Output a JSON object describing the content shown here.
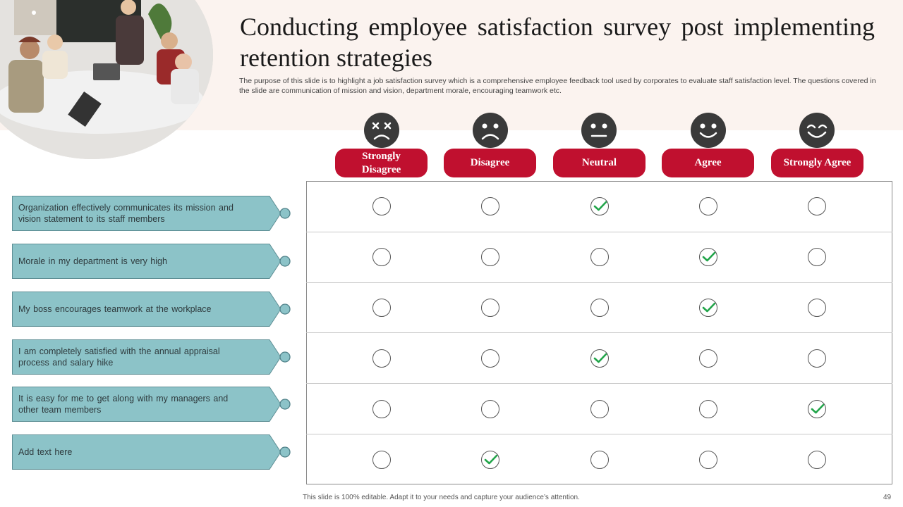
{
  "slide": {
    "title": "Conducting employee satisfaction survey post implementing retention strategies",
    "subtitle": "The purpose of this slide is to highlight a job satisfaction survey which is a comprehensive employee feedback tool used by corporates to evaluate staff satisfaction level. The questions covered in the slide are communication of mission and vision, department morale, encouraging teamwork etc.",
    "footer": "This slide is 100% editable. Adapt it to your needs and capture your audience’s attention.",
    "page_number": "49"
  },
  "colors": {
    "accent_red": "#c0102f",
    "question_teal": "#8cc3c8",
    "face_dark": "#3a3a3a",
    "check_green": "#22a54a",
    "header_band": "#fbf3ef"
  },
  "scale": {
    "options": [
      {
        "label": "Strongly Disagree",
        "icon": "face-dizzy-icon"
      },
      {
        "label": "Disagree",
        "icon": "face-sad-icon"
      },
      {
        "label": "Neutral",
        "icon": "face-neutral-icon"
      },
      {
        "label": "Agree",
        "icon": "face-smile-icon"
      },
      {
        "label": "Strongly Agree",
        "icon": "face-happy-icon"
      }
    ]
  },
  "questions": [
    {
      "text": "Organization effectively communicates its mission and vision statement to its staff members",
      "selected": 2
    },
    {
      "text": "Morale in my department is very high",
      "selected": 3
    },
    {
      "text": "My boss encourages teamwork at the workplace",
      "selected": 3
    },
    {
      "text": "I am completely satisfied with the annual appraisal process and salary hike",
      "selected": 2
    },
    {
      "text": "It is easy for me to get along with my managers and other team members",
      "selected": 4
    },
    {
      "text": "Add text here",
      "selected": 1
    }
  ]
}
